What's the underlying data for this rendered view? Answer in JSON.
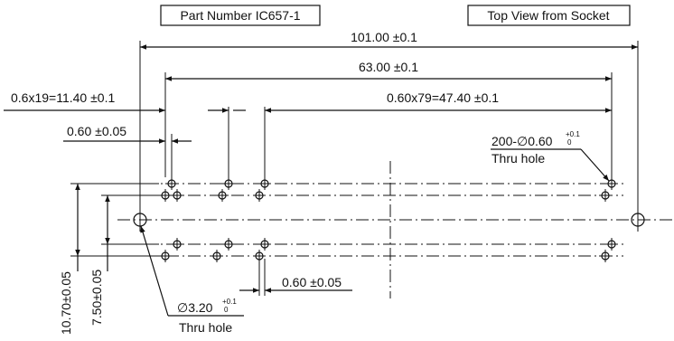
{
  "labels": {
    "part_number": "Part Number IC657-1",
    "view": "Top View from Socket",
    "dim_overall": "101.00 ±0.1",
    "dim_63": "63.00 ±0.1",
    "dim_left_pitch": "0.6x19=11.40 ±0.1",
    "dim_right_pitch": "0.60x79=47.40 ±0.1",
    "dim_pitch_top": "0.60 ±0.05",
    "dim_pitch_bottom": "0.60 ±0.05",
    "hole_small_main": "200-∅0.60",
    "hole_small_tol_upper": "+0.1",
    "hole_small_tol_lower": "0",
    "hole_small_type": "Thru hole",
    "hole_large_main": "∅3.20",
    "hole_large_tol_upper": "+0.1",
    "hole_large_tol_lower": "0",
    "hole_large_type": "Thru hole",
    "dim_vertical_outer": "10.70±0.05",
    "dim_vertical_inner": "7.50±0.05"
  },
  "colors": {
    "ink": "#111111",
    "background": "#ffffff"
  }
}
